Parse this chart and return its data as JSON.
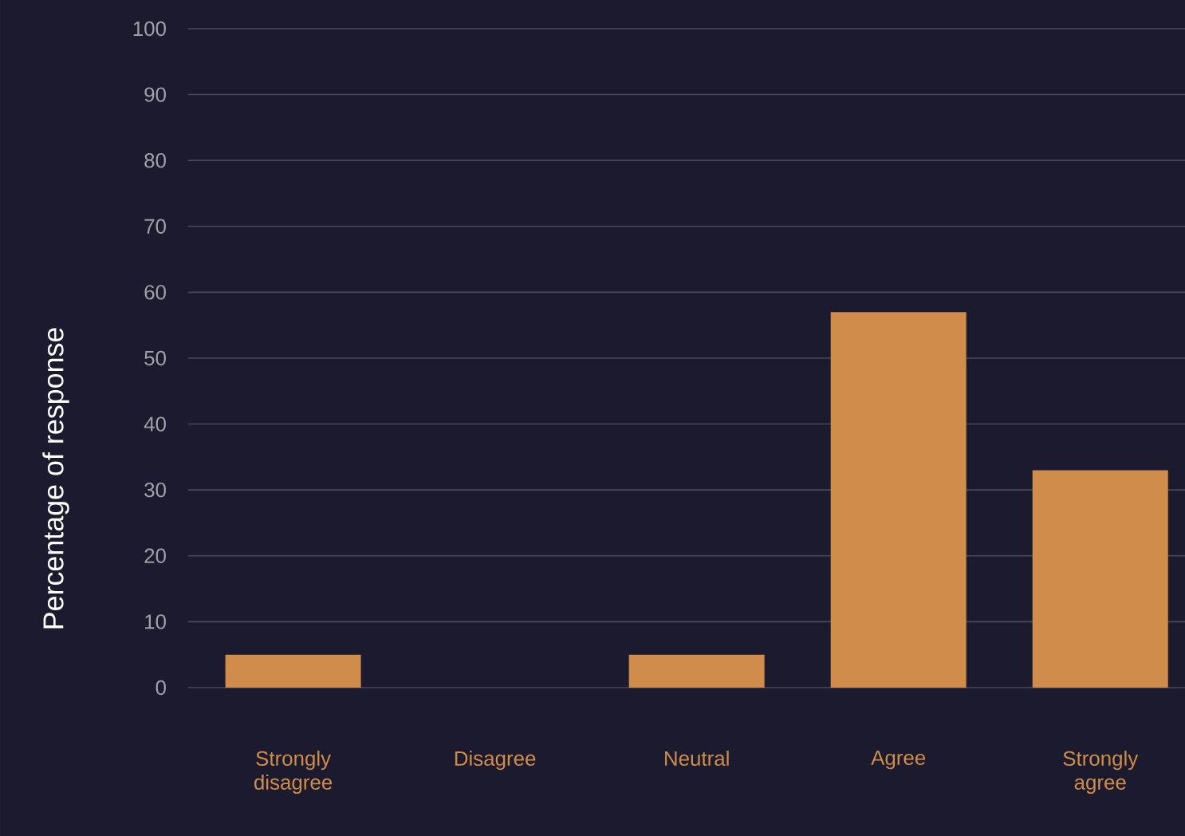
{
  "chart_data": {
    "type": "bar",
    "ylabel": "Percentage of response",
    "categories": [
      "Strongly disagree",
      "Disagree",
      "Neutral",
      "Agree",
      "Strongly agree"
    ],
    "values": [
      5,
      0,
      5,
      57,
      33
    ],
    "color": "#d08c4a",
    "ylim": [
      0,
      100
    ],
    "yticks": [
      0,
      10,
      20,
      30,
      40,
      50,
      60,
      70,
      80,
      90,
      100
    ],
    "grid": "y"
  }
}
